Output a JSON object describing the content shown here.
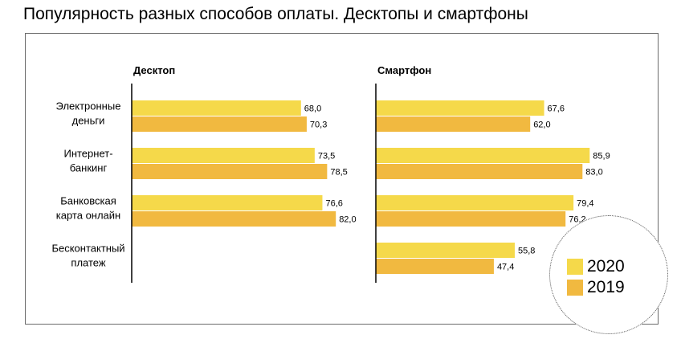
{
  "title": "Популярность разных способов оплаты. Десктопы и смартфоны",
  "colors": {
    "s2020": "#F5D94A",
    "s2019": "#F1B940",
    "axis": "#000000",
    "frame": "#6b6b6b"
  },
  "chart_data": {
    "type": "bar",
    "orientation": "horizontal",
    "categories": [
      "Электронные деньги",
      "Интернет-банкинг",
      "Банковская карта онлайн",
      "Бесконтактный платеж"
    ],
    "category_lines": [
      [
        "Электронные",
        "деньги"
      ],
      [
        "Интернет-",
        "банкинг"
      ],
      [
        "Банковская",
        "карта онлайн"
      ],
      [
        "Бесконтактный",
        "платеж"
      ]
    ],
    "series_names": [
      "2020",
      "2019"
    ],
    "panels": [
      {
        "title": "Десктоп",
        "series": [
          {
            "name": "2020",
            "values": [
              68.0,
              73.5,
              76.6,
              null
            ],
            "labels": [
              "68,0",
              "73,5",
              "76,6",
              ""
            ]
          },
          {
            "name": "2019",
            "values": [
              70.3,
              78.5,
              82.0,
              null
            ],
            "labels": [
              "70,3",
              "78,5",
              "82,0",
              ""
            ]
          }
        ]
      },
      {
        "title": "Смартфон",
        "series": [
          {
            "name": "2020",
            "values": [
              67.6,
              85.9,
              79.4,
              55.8
            ],
            "labels": [
              "67,6",
              "85,9",
              "79,4",
              "55,8"
            ]
          },
          {
            "name": "2019",
            "values": [
              62.0,
              83.0,
              76.2,
              47.4
            ],
            "labels": [
              "62,0",
              "83,0",
              "76,2",
              "47,4"
            ]
          }
        ]
      }
    ],
    "xlim": [
      0,
      100
    ],
    "legend": {
      "position": "bottom-right",
      "entries": [
        "2020",
        "2019"
      ]
    },
    "grid": false
  }
}
